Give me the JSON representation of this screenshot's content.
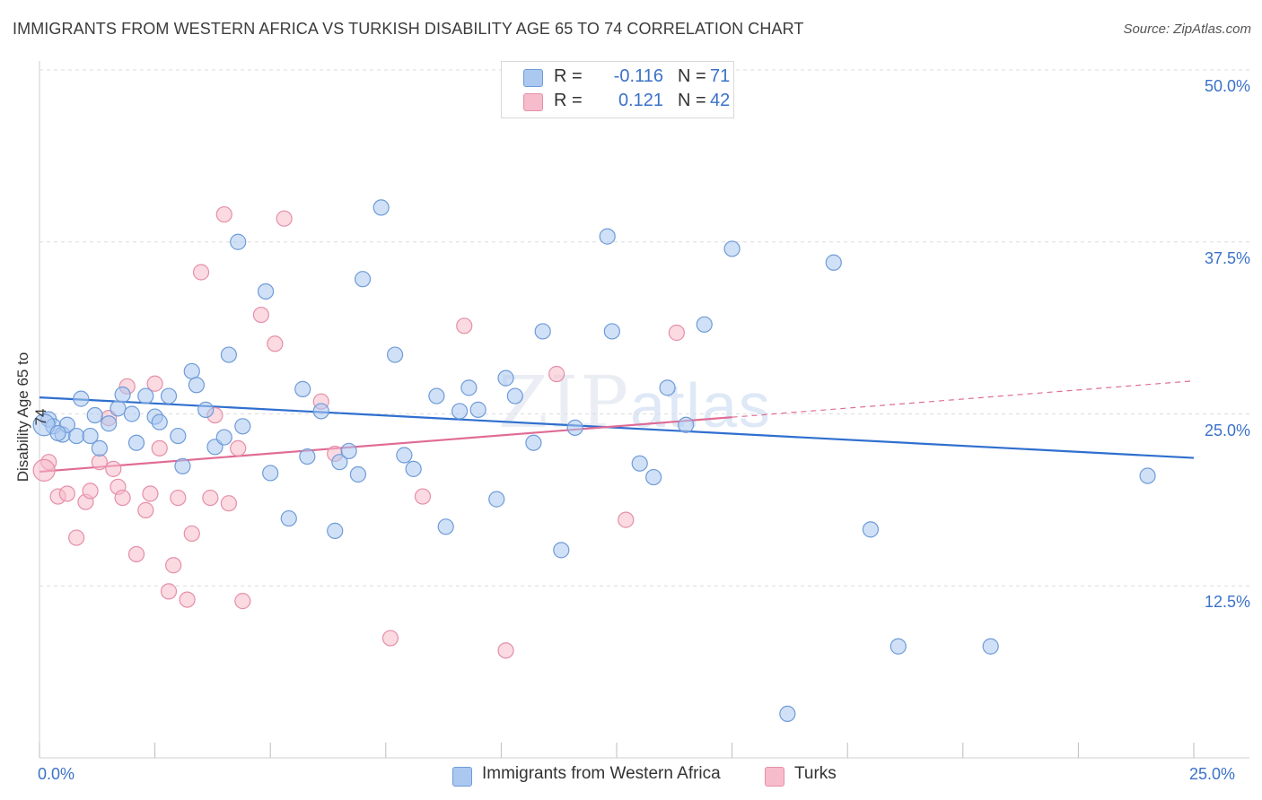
{
  "title": "IMMIGRANTS FROM WESTERN AFRICA VS TURKISH DISABILITY AGE 65 TO 74 CORRELATION CHART",
  "source": "Source: ZipAtlas.com",
  "watermark": {
    "main": "ZIP",
    "sub": "atlas"
  },
  "legend_top": {
    "rows": [
      {
        "r_label": "R =",
        "r_value": "-0.116",
        "n_label": "N =",
        "n_value": "71",
        "color": "#aac8f0"
      },
      {
        "r_label": "R =",
        "r_value": "0.121",
        "n_label": "N =",
        "n_value": "42",
        "color": "#f7bccb"
      }
    ]
  },
  "legend_bottom": {
    "items": [
      {
        "label": "Immigrants from Western Africa",
        "color": "#aac8f0"
      },
      {
        "label": "Turks",
        "color": "#f7bccb"
      }
    ]
  },
  "colors": {
    "blue_fill": "#aac8f0",
    "blue_stroke": "#6f9bd8",
    "blue_line": "#2f6fcf",
    "pink_fill": "#f7bccb",
    "pink_stroke": "#e58fa8",
    "pink_line": "#e06c95",
    "axis_label": "#3a72c8",
    "grid": "#dcdcdc"
  },
  "chart_data": {
    "type": "scatter",
    "title": "IMMIGRANTS FROM WESTERN AFRICA VS TURKISH DISABILITY AGE 65 TO 74 CORRELATION CHART",
    "xlabel": "",
    "ylabel": "Disability Age 65 to 74",
    "xlim": [
      0,
      25
    ],
    "ylim": [
      0,
      50
    ],
    "x_tick_labels": [
      "0.0%",
      "25.0%"
    ],
    "y_tick_labels": [
      {
        "value": 50,
        "label": "50.0%"
      },
      {
        "value": 37.5,
        "label": "37.5%"
      },
      {
        "value": 25,
        "label": "25.0%"
      },
      {
        "value": 12.5,
        "label": "12.5%"
      }
    ],
    "grid": true,
    "legend_position": "bottom",
    "series": [
      {
        "name": "Immigrants from Western Africa",
        "points": [
          [
            0.2,
            24.6
          ],
          [
            0.3,
            24.1
          ],
          [
            0.5,
            23.5
          ],
          [
            0.6,
            24.2
          ],
          [
            0.8,
            23.4
          ],
          [
            0.9,
            26.1
          ],
          [
            1.1,
            23.4
          ],
          [
            1.2,
            24.9
          ],
          [
            1.3,
            22.5
          ],
          [
            1.5,
            24.3
          ],
          [
            1.7,
            25.4
          ],
          [
            1.8,
            26.4
          ],
          [
            2.0,
            25.0
          ],
          [
            2.1,
            22.9
          ],
          [
            2.3,
            26.3
          ],
          [
            2.5,
            24.8
          ],
          [
            2.6,
            24.4
          ],
          [
            2.8,
            26.3
          ],
          [
            3.0,
            23.4
          ],
          [
            3.1,
            21.2
          ],
          [
            3.3,
            28.1
          ],
          [
            3.4,
            27.1
          ],
          [
            3.6,
            25.3
          ],
          [
            3.8,
            22.6
          ],
          [
            4.0,
            23.3
          ],
          [
            4.1,
            29.3
          ],
          [
            4.3,
            37.5
          ],
          [
            4.4,
            24.1
          ],
          [
            4.9,
            33.9
          ],
          [
            5.0,
            20.7
          ],
          [
            5.4,
            17.4
          ],
          [
            5.7,
            26.8
          ],
          [
            5.8,
            21.9
          ],
          [
            6.1,
            25.2
          ],
          [
            6.4,
            16.5
          ],
          [
            6.5,
            21.5
          ],
          [
            6.7,
            22.3
          ],
          [
            6.9,
            20.6
          ],
          [
            7.0,
            34.8
          ],
          [
            7.4,
            40.0
          ],
          [
            7.7,
            29.3
          ],
          [
            7.9,
            22.0
          ],
          [
            8.1,
            21.0
          ],
          [
            8.6,
            26.3
          ],
          [
            8.8,
            16.8
          ],
          [
            9.1,
            25.2
          ],
          [
            9.3,
            26.9
          ],
          [
            9.5,
            25.3
          ],
          [
            9.9,
            18.8
          ],
          [
            10.1,
            27.6
          ],
          [
            10.3,
            26.3
          ],
          [
            10.7,
            22.9
          ],
          [
            10.9,
            31.0
          ],
          [
            11.3,
            15.1
          ],
          [
            11.6,
            24.0
          ],
          [
            12.3,
            37.9
          ],
          [
            12.4,
            31.0
          ],
          [
            13.0,
            21.4
          ],
          [
            13.3,
            20.4
          ],
          [
            13.6,
            26.9
          ],
          [
            14.0,
            24.2
          ],
          [
            14.4,
            31.5
          ],
          [
            15.0,
            37.0
          ],
          [
            16.2,
            3.2
          ],
          [
            17.2,
            36.0
          ],
          [
            18.0,
            16.6
          ],
          [
            18.6,
            8.1
          ],
          [
            20.6,
            8.1
          ],
          [
            24.0,
            20.5
          ],
          [
            0.1,
            24.2
          ],
          [
            0.4,
            23.6
          ]
        ],
        "trend": {
          "x": [
            0,
            25
          ],
          "y": [
            26.2,
            21.8
          ],
          "dashed_from": null
        }
      },
      {
        "name": "Turks",
        "points": [
          [
            0.2,
            21.5
          ],
          [
            0.4,
            19.0
          ],
          [
            0.6,
            19.2
          ],
          [
            0.8,
            16.0
          ],
          [
            1.0,
            18.6
          ],
          [
            1.1,
            19.4
          ],
          [
            1.3,
            21.5
          ],
          [
            1.5,
            24.7
          ],
          [
            1.6,
            21.0
          ],
          [
            1.7,
            19.7
          ],
          [
            1.8,
            18.9
          ],
          [
            1.9,
            27.0
          ],
          [
            2.1,
            14.8
          ],
          [
            2.3,
            18.0
          ],
          [
            2.4,
            19.2
          ],
          [
            2.5,
            27.2
          ],
          [
            2.6,
            22.5
          ],
          [
            2.8,
            12.1
          ],
          [
            2.9,
            14.0
          ],
          [
            3.0,
            18.9
          ],
          [
            3.2,
            11.5
          ],
          [
            3.3,
            16.3
          ],
          [
            3.5,
            35.3
          ],
          [
            3.7,
            18.9
          ],
          [
            3.8,
            24.9
          ],
          [
            4.0,
            39.5
          ],
          [
            4.1,
            18.5
          ],
          [
            4.3,
            22.5
          ],
          [
            4.4,
            11.4
          ],
          [
            4.8,
            32.2
          ],
          [
            5.1,
            30.1
          ],
          [
            5.3,
            39.2
          ],
          [
            6.1,
            25.9
          ],
          [
            6.4,
            22.1
          ],
          [
            7.6,
            8.7
          ],
          [
            8.3,
            19.0
          ],
          [
            9.2,
            31.4
          ],
          [
            10.1,
            7.8
          ],
          [
            11.2,
            27.9
          ],
          [
            12.7,
            17.3
          ],
          [
            13.8,
            30.9
          ],
          [
            0.1,
            20.9
          ]
        ],
        "trend": {
          "x": [
            0,
            25
          ],
          "y": [
            20.8,
            27.4
          ],
          "solid_until": 15.0
        }
      }
    ]
  }
}
